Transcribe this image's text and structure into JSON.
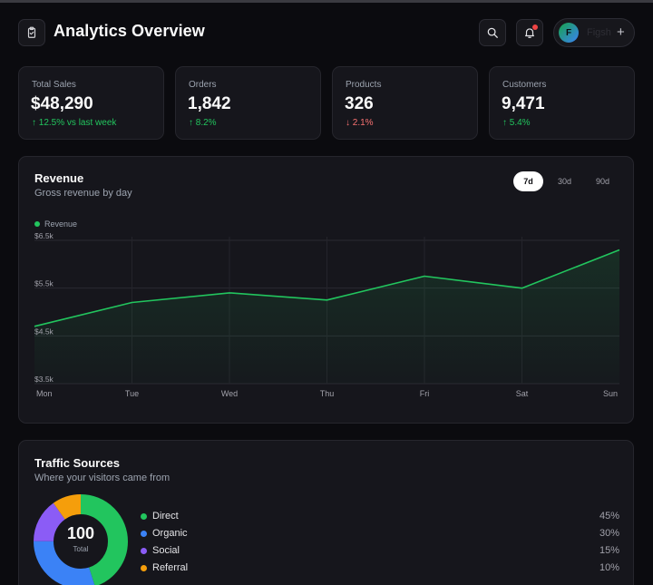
{
  "header": {
    "title": "Analytics Overview",
    "user_initial": "F",
    "user_name": "Figsh",
    "plus": "+"
  },
  "stats": [
    {
      "label": "Total Sales",
      "value": "$48,290",
      "delta": "↑ 12.5% vs last week",
      "trend": "up"
    },
    {
      "label": "Orders",
      "value": "1,842",
      "delta": "↑ 8.2%",
      "trend": "up"
    },
    {
      "label": "Products",
      "value": "326",
      "delta": "↓ 2.1%",
      "trend": "down"
    },
    {
      "label": "Customers",
      "value": "9,471",
      "delta": "↑ 5.4%",
      "trend": "up"
    }
  ],
  "revenue": {
    "title": "Revenue",
    "subtitle": "Gross revenue by day",
    "tabs": [
      "7d",
      "30d",
      "90d"
    ],
    "active_tab": "7d"
  },
  "chart_data": {
    "type": "area",
    "categories": [
      "Mon",
      "Tue",
      "Wed",
      "Thu",
      "Fri",
      "Sat",
      "Sun"
    ],
    "series": [
      {
        "name": "Revenue",
        "values": [
          4.7,
          5.2,
          5.4,
          5.25,
          5.75,
          5.5,
          6.3
        ],
        "color": "#22c55e"
      }
    ],
    "yticks": [
      "$6.5k",
      "$5.5k",
      "$4.5k",
      "$3.5k"
    ],
    "ylim": [
      3.5,
      6.5
    ],
    "grid": true,
    "legend": "top-left"
  },
  "traffic": {
    "title": "Traffic Sources",
    "subtitle": "Where your visitors came from",
    "total_value": "100",
    "total_label": "Total",
    "sources": [
      {
        "name": "Direct",
        "pct": "45%",
        "value": 45,
        "color": "#22c55e"
      },
      {
        "name": "Organic",
        "pct": "30%",
        "value": 30,
        "color": "#3b82f6"
      },
      {
        "name": "Social",
        "pct": "15%",
        "value": 15,
        "color": "#8b5cf6"
      },
      {
        "name": "Referral",
        "pct": "10%",
        "value": 10,
        "color": "#f59e0b"
      }
    ]
  }
}
